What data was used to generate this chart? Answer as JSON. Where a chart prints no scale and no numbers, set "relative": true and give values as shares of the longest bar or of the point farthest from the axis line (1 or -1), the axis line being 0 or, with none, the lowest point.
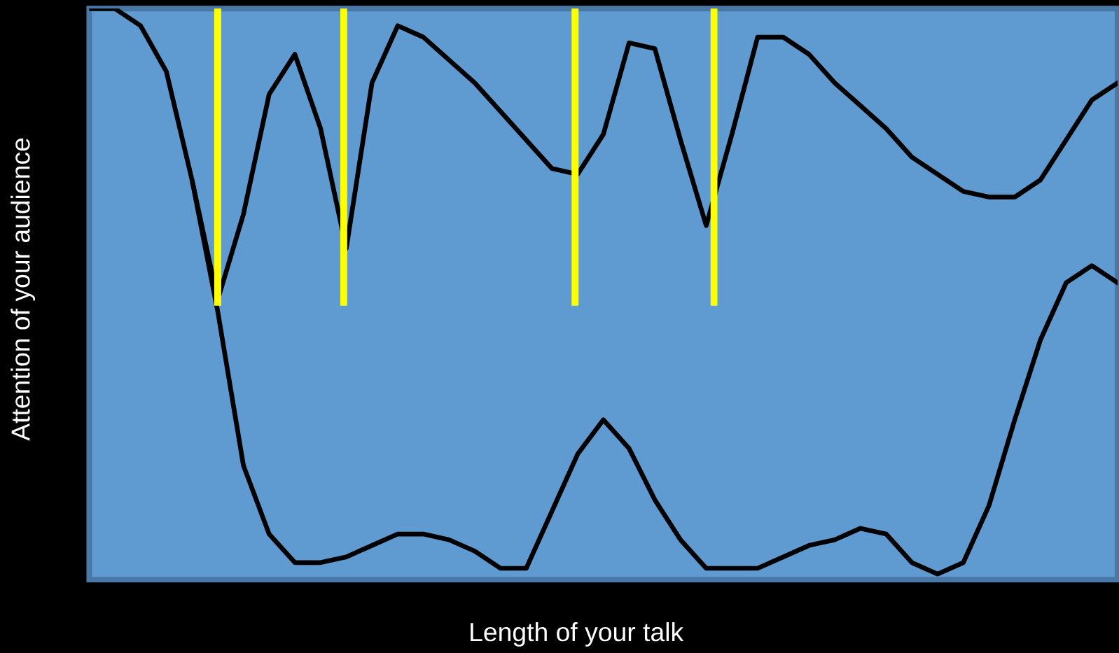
{
  "chart_data": {
    "type": "line",
    "relative": true,
    "xlabel": "Length of your talk",
    "ylabel": "Attention of your audience",
    "categories": [
      null,
      null,
      null,
      null,
      null,
      null,
      null,
      null,
      null,
      null,
      null,
      null,
      null,
      null,
      null,
      null,
      null,
      null,
      null,
      null,
      null,
      null,
      null,
      null,
      null,
      null,
      null,
      null,
      null,
      null,
      null,
      null,
      null,
      null,
      null,
      null,
      null,
      null,
      null,
      null,
      null
    ],
    "series": [
      {
        "color": "#000000",
        "values": [
          1.0,
          1.0,
          0.97,
          0.89,
          0.7,
          0.49,
          0.64,
          0.85,
          0.92,
          0.79,
          0.58,
          0.87,
          0.97,
          0.95,
          0.91,
          0.87,
          0.82,
          0.77,
          0.72,
          0.71,
          0.78,
          0.94,
          0.93,
          0.77,
          0.62,
          0.78,
          0.95,
          0.95,
          0.92,
          0.87,
          0.83,
          0.79,
          0.74,
          0.71,
          0.68,
          0.67,
          0.67,
          0.7,
          0.77,
          0.84,
          0.87
        ]
      },
      {
        "color": "#000000",
        "values": [
          null,
          null,
          null,
          null,
          0.7,
          0.47,
          0.2,
          0.08,
          0.03,
          0.03,
          0.04,
          0.06,
          0.08,
          0.08,
          0.07,
          0.05,
          0.02,
          0.02,
          0.12,
          0.22,
          0.28,
          0.23,
          0.14,
          0.07,
          0.02,
          0.02,
          0.02,
          0.04,
          0.06,
          0.07,
          0.09,
          0.08,
          0.03,
          0.01,
          0.03,
          0.13,
          0.28,
          0.42,
          0.52,
          0.55,
          0.52
        ]
      }
    ]
  }
}
